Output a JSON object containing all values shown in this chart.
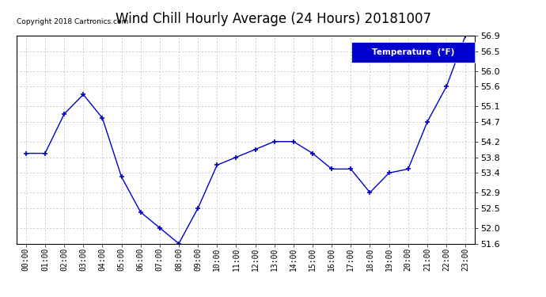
{
  "title": "Wind Chill Hourly Average (24 Hours) 20181007",
  "copyright_text": "Copyright 2018 Cartronics.com",
  "legend_label": "Temperature  (°F)",
  "hours": [
    "00:00",
    "01:00",
    "02:00",
    "03:00",
    "04:00",
    "05:00",
    "06:00",
    "07:00",
    "08:00",
    "09:00",
    "10:00",
    "11:00",
    "12:00",
    "13:00",
    "14:00",
    "15:00",
    "16:00",
    "17:00",
    "18:00",
    "19:00",
    "20:00",
    "21:00",
    "22:00",
    "23:00"
  ],
  "values": [
    53.9,
    53.9,
    54.9,
    55.4,
    54.8,
    53.3,
    52.4,
    52.0,
    51.6,
    52.5,
    53.6,
    53.8,
    54.0,
    54.2,
    54.2,
    53.9,
    53.5,
    53.5,
    52.9,
    53.4,
    53.5,
    54.7,
    55.6,
    56.9
  ],
  "ylim_min": 51.6,
  "ylim_max": 56.9,
  "yticks": [
    51.6,
    52.0,
    52.5,
    52.9,
    53.4,
    53.8,
    54.2,
    54.7,
    55.1,
    55.6,
    56.0,
    56.5,
    56.9
  ],
  "line_color": "#0000CC",
  "marker_color": "#0000CC",
  "bg_color": "#ffffff",
  "plot_bg_color": "#ffffff",
  "grid_color": "#bbbbbb",
  "title_fontsize": 12,
  "legend_bg_color": "#0000CC",
  "legend_text_color": "#ffffff"
}
